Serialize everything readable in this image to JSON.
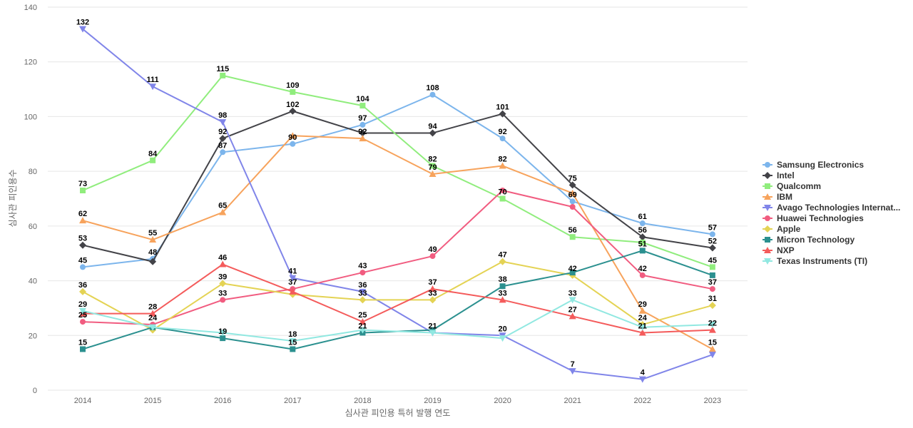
{
  "chart_data": {
    "type": "line",
    "title": "",
    "xlabel": "심사관 피인용 특허 발행 연도",
    "ylabel": "심사관 피인용수",
    "x": [
      "2014",
      "2015",
      "2016",
      "2017",
      "2018",
      "2019",
      "2020",
      "2021",
      "2022",
      "2023"
    ],
    "ylim": [
      0,
      140
    ],
    "yticks": [
      0,
      20,
      40,
      60,
      80,
      100,
      120,
      140
    ],
    "grid": true,
    "legend_position": "right",
    "series": [
      {
        "name": "Samsung Electronics",
        "color": "#7cb5ec",
        "marker": "circle",
        "values": [
          45,
          48,
          87,
          90,
          97,
          108,
          92,
          69,
          61,
          57
        ]
      },
      {
        "name": "Intel",
        "color": "#434348",
        "marker": "diamond",
        "values": [
          53,
          47,
          92,
          102,
          94,
          94,
          101,
          75,
          56,
          52
        ]
      },
      {
        "name": "Qualcomm",
        "color": "#90ed7d",
        "marker": "square",
        "values": [
          73,
          84,
          115,
          109,
          104,
          82,
          70,
          56,
          54,
          45
        ]
      },
      {
        "name": "IBM",
        "color": "#f7a35c",
        "marker": "triangle",
        "values": [
          62,
          55,
          65,
          93,
          92,
          79,
          82,
          72,
          29,
          15
        ]
      },
      {
        "name": "Avago Technologies Internat...",
        "color": "#8085e9",
        "marker": "triangle-down",
        "values": [
          132,
          111,
          98,
          41,
          36,
          21,
          20,
          7,
          4,
          13
        ]
      },
      {
        "name": "Huawei Technologies",
        "color": "#f15c80",
        "marker": "circle",
        "values": [
          25,
          24,
          33,
          37,
          43,
          49,
          73,
          67,
          42,
          37
        ]
      },
      {
        "name": "Apple",
        "color": "#e4d354",
        "marker": "diamond",
        "values": [
          36,
          22,
          39,
          35,
          33,
          33,
          47,
          42,
          24,
          31
        ]
      },
      {
        "name": "Micron Technology",
        "color": "#2b908f",
        "marker": "square",
        "values": [
          15,
          23,
          19,
          15,
          21,
          22,
          38,
          43,
          51,
          42
        ]
      },
      {
        "name": "NXP",
        "color": "#f45b5b",
        "marker": "triangle",
        "values": [
          28,
          28,
          46,
          36,
          25,
          37,
          33,
          27,
          21,
          22
        ]
      },
      {
        "name": "Texas Instruments (TI)",
        "color": "#91e8e1",
        "marker": "triangle-down",
        "values": [
          29,
          23,
          21,
          18,
          22,
          21,
          19,
          33,
          23,
          24
        ]
      }
    ],
    "data_labels": [
      {
        "x": "2014",
        "value": 132
      },
      {
        "x": "2014",
        "value": 73
      },
      {
        "x": "2014",
        "value": 62
      },
      {
        "x": "2014",
        "value": 53
      },
      {
        "x": "2014",
        "value": 45
      },
      {
        "x": "2014",
        "value": 36
      },
      {
        "x": "2014",
        "value": 29
      },
      {
        "x": "2014",
        "value": 25
      },
      {
        "x": "2014",
        "value": 15
      },
      {
        "x": "2015",
        "value": 111
      },
      {
        "x": "2015",
        "value": 84
      },
      {
        "x": "2015",
        "value": 55
      },
      {
        "x": "2015",
        "value": 48
      },
      {
        "x": "2015",
        "value": 28
      },
      {
        "x": "2015",
        "value": 24
      },
      {
        "x": "2016",
        "value": 115
      },
      {
        "x": "2016",
        "value": 98
      },
      {
        "x": "2016",
        "value": 92
      },
      {
        "x": "2016",
        "value": 87
      },
      {
        "x": "2016",
        "value": 65
      },
      {
        "x": "2016",
        "value": 46
      },
      {
        "x": "2016",
        "value": 39
      },
      {
        "x": "2016",
        "value": 33
      },
      {
        "x": "2016",
        "value": 19
      },
      {
        "x": "2017",
        "value": 109
      },
      {
        "x": "2017",
        "value": 102
      },
      {
        "x": "2017",
        "value": 90
      },
      {
        "x": "2017",
        "value": 41
      },
      {
        "x": "2017",
        "value": 37
      },
      {
        "x": "2017",
        "value": 18
      },
      {
        "x": "2017",
        "value": 15
      },
      {
        "x": "2018",
        "value": 104
      },
      {
        "x": "2018",
        "value": 97
      },
      {
        "x": "2018",
        "value": 92
      },
      {
        "x": "2018",
        "value": 43
      },
      {
        "x": "2018",
        "value": 36
      },
      {
        "x": "2018",
        "value": 33
      },
      {
        "x": "2018",
        "value": 25
      },
      {
        "x": "2018",
        "value": 21
      },
      {
        "x": "2019",
        "value": 108
      },
      {
        "x": "2019",
        "value": 94
      },
      {
        "x": "2019",
        "value": 82
      },
      {
        "x": "2019",
        "value": 79
      },
      {
        "x": "2019",
        "value": 49
      },
      {
        "x": "2019",
        "value": 37
      },
      {
        "x": "2019",
        "value": 33
      },
      {
        "x": "2019",
        "value": 21
      },
      {
        "x": "2020",
        "value": 101
      },
      {
        "x": "2020",
        "value": 92
      },
      {
        "x": "2020",
        "value": 82
      },
      {
        "x": "2020",
        "value": 70
      },
      {
        "x": "2020",
        "value": 47
      },
      {
        "x": "2020",
        "value": 38
      },
      {
        "x": "2020",
        "value": 33
      },
      {
        "x": "2020",
        "value": 20
      },
      {
        "x": "2021",
        "value": 75
      },
      {
        "x": "2021",
        "value": 69
      },
      {
        "x": "2021",
        "value": 56
      },
      {
        "x": "2021",
        "value": 42
      },
      {
        "x": "2021",
        "value": 33
      },
      {
        "x": "2021",
        "value": 27
      },
      {
        "x": "2021",
        "value": 7
      },
      {
        "x": "2022",
        "value": 61
      },
      {
        "x": "2022",
        "value": 56
      },
      {
        "x": "2022",
        "value": 51
      },
      {
        "x": "2022",
        "value": 42
      },
      {
        "x": "2022",
        "value": 29
      },
      {
        "x": "2022",
        "value": 24
      },
      {
        "x": "2022",
        "value": 21
      },
      {
        "x": "2022",
        "value": 4
      },
      {
        "x": "2023",
        "value": 57
      },
      {
        "x": "2023",
        "value": 52
      },
      {
        "x": "2023",
        "value": 45
      },
      {
        "x": "2023",
        "value": 37
      },
      {
        "x": "2023",
        "value": 31
      },
      {
        "x": "2023",
        "value": 22
      },
      {
        "x": "2023",
        "value": 15
      }
    ]
  }
}
